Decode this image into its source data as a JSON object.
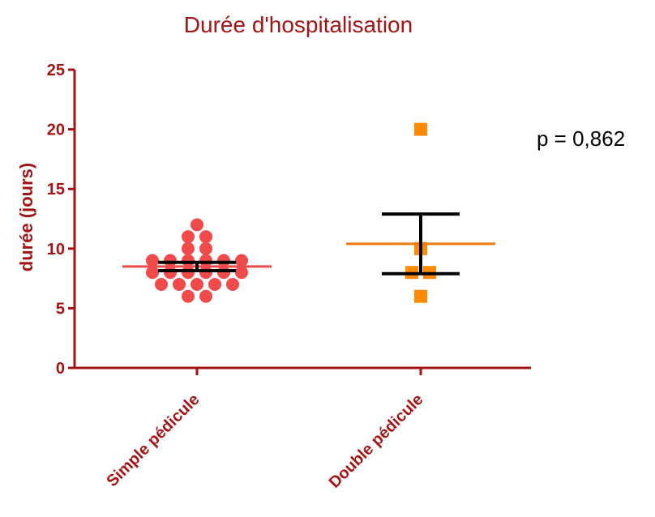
{
  "chart_data": {
    "type": "scatter",
    "title": "Durée d'hospitalisation",
    "xlabel": "",
    "ylabel": "durée (jours)",
    "ylim": [
      0,
      25
    ],
    "yticks": [
      0,
      5,
      10,
      15,
      20,
      25
    ],
    "categories": [
      "Simple pédicule",
      "Double pédicule"
    ],
    "series": [
      {
        "category": "Simple pédicule",
        "marker": "circle",
        "color": "#f04a4a",
        "mean_color": "#f04a4a",
        "values": [
          12,
          11,
          11,
          10,
          10,
          9,
          9,
          9,
          9,
          9,
          9,
          8,
          8,
          8,
          8,
          8,
          8,
          7,
          7,
          7,
          7,
          7,
          6,
          6
        ],
        "mean": 8.5,
        "error_low": 8.15,
        "error_high": 8.85
      },
      {
        "category": "Double pédicule",
        "marker": "square",
        "color": "#ff8a00",
        "mean_color": "#f07a10",
        "values": [
          20,
          10,
          8,
          8,
          6
        ],
        "mean": 10.4,
        "error_low": 7.9,
        "error_high": 12.9
      }
    ],
    "annotations": [
      {
        "text": "p = 0,862"
      }
    ],
    "grid": false,
    "axis_color": "#a31515"
  }
}
